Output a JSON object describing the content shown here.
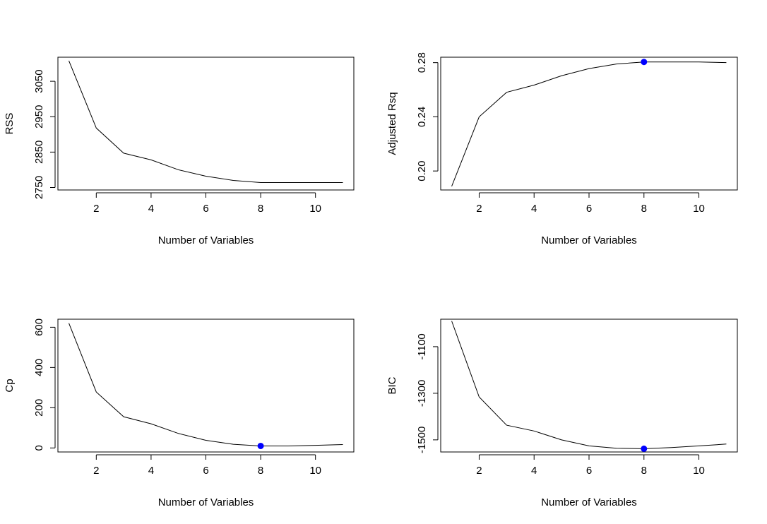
{
  "chart_data": [
    {
      "type": "line",
      "xlabel": "Number of Variables",
      "ylabel": "RSS",
      "x": [
        1,
        2,
        3,
        4,
        5,
        6,
        7,
        8,
        9,
        10,
        11
      ],
      "y": [
        3108,
        2918,
        2847,
        2828,
        2800,
        2782,
        2770,
        2764,
        2764,
        2764,
        2764
      ],
      "xlim": [
        0.6,
        11.4
      ],
      "ylim": [
        2743,
        3118
      ],
      "xticks": [
        2,
        4,
        6,
        8,
        10
      ],
      "yticks": [
        2750,
        2850,
        2950,
        3050
      ],
      "highlight_point": null,
      "highlight_color": "#0000ff"
    },
    {
      "type": "line",
      "xlabel": "Number of Variables",
      "ylabel": "Adjusted Rsq",
      "x": [
        1,
        2,
        3,
        4,
        5,
        6,
        7,
        8,
        9,
        10,
        11
      ],
      "y": [
        0.1887,
        0.24,
        0.2581,
        0.2634,
        0.2703,
        0.2756,
        0.279,
        0.2805,
        0.2805,
        0.2805,
        0.28
      ],
      "xlim": [
        0.6,
        11.4
      ],
      "ylim": [
        0.186,
        0.284
      ],
      "xticks": [
        2,
        4,
        6,
        8,
        10
      ],
      "yticks": [
        0.2,
        0.24,
        0.28
      ],
      "ytick_labels": [
        "0.20",
        "0.24",
        "0.28"
      ],
      "highlight_point": {
        "x": 8,
        "y": 0.2805
      },
      "highlight_color": "#0000ff"
    },
    {
      "type": "line",
      "xlabel": "Number of Variables",
      "ylabel": "Cp",
      "x": [
        1,
        2,
        3,
        4,
        5,
        6,
        7,
        8,
        9,
        10,
        11
      ],
      "y": [
        620,
        278,
        155,
        120,
        72,
        38,
        18,
        10,
        10,
        13,
        17
      ],
      "xlim": [
        0.6,
        11.4
      ],
      "ylim": [
        -20,
        640
      ],
      "xticks": [
        2,
        4,
        6,
        8,
        10
      ],
      "yticks": [
        0,
        200,
        400,
        600
      ],
      "highlight_point": {
        "x": 8,
        "y": 10
      },
      "highlight_color": "#0000ff"
    },
    {
      "type": "line",
      "xlabel": "Number of Variables",
      "ylabel": "BIC",
      "x": [
        1,
        2,
        3,
        4,
        5,
        6,
        7,
        8,
        9,
        10,
        11
      ],
      "y": [
        -990,
        -1316,
        -1437,
        -1462,
        -1500,
        -1526,
        -1536,
        -1538,
        -1533,
        -1526,
        -1518
      ],
      "xlim": [
        0.6,
        11.4
      ],
      "ylim": [
        -1552,
        -982
      ],
      "xticks": [
        2,
        4,
        6,
        8,
        10
      ],
      "yticks": [
        -1500,
        -1300,
        -1100
      ],
      "highlight_point": {
        "x": 8,
        "y": -1538
      },
      "highlight_color": "#0000ff"
    }
  ]
}
